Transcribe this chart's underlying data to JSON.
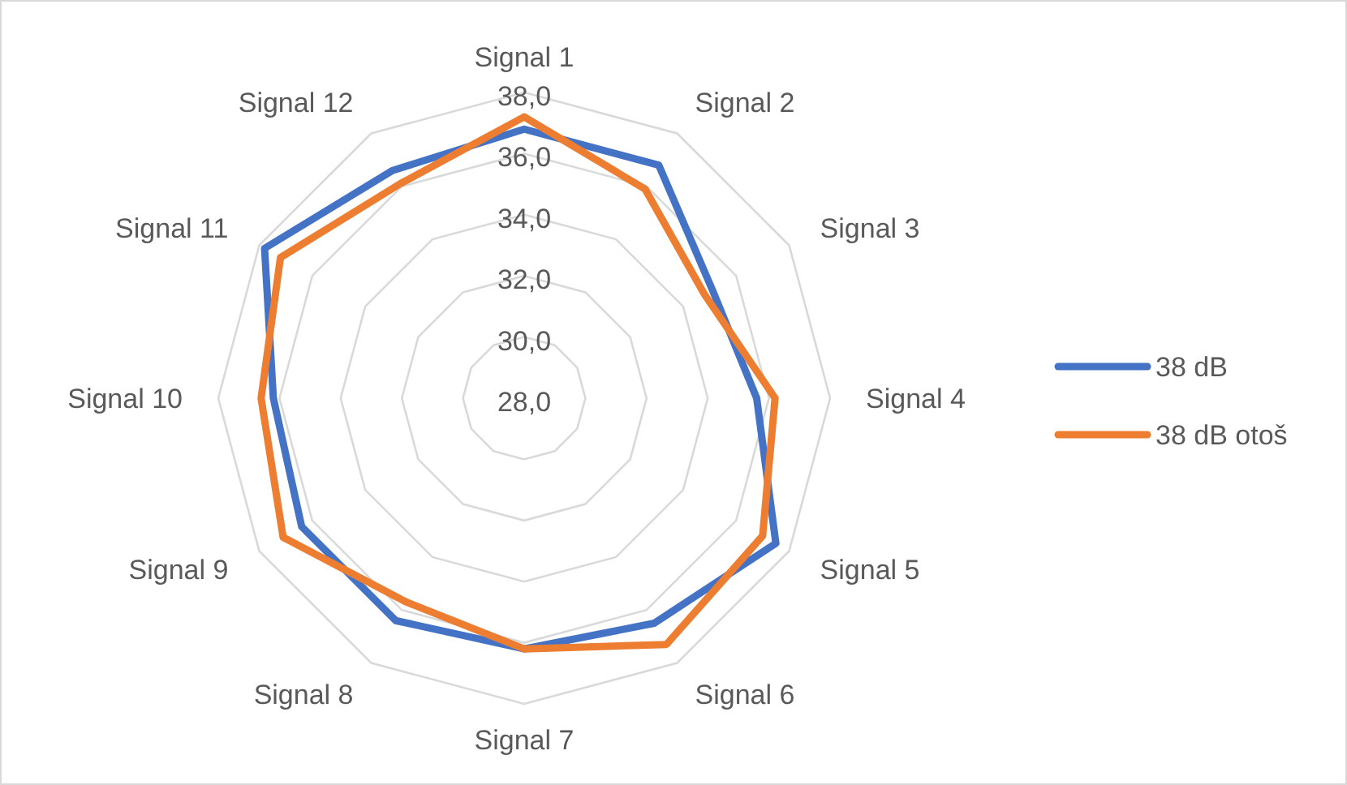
{
  "chart_data": {
    "type": "radar",
    "categories": [
      "Signal 1",
      "Signal 2",
      "Signal 3",
      "Signal 4",
      "Signal 5",
      "Signal 6",
      "Signal 7",
      "Signal 8",
      "Signal 9",
      "Signal 10",
      "Signal 11",
      "Signal 12"
    ],
    "series": [
      {
        "name": "38 dB",
        "color": "#4472c4",
        "values": [
          36.8,
          36.8,
          35.1,
          35.6,
          37.5,
          36.5,
          36.2,
          36.4,
          36.4,
          36.2,
          37.8,
          36.6
        ]
      },
      {
        "name": "38 dB otoš",
        "color": "#ed7d31",
        "values": [
          37.2,
          35.9,
          34.8,
          36.2,
          37.0,
          37.3,
          36.2,
          35.7,
          37.1,
          36.6,
          37.2,
          36.1
        ]
      }
    ],
    "ylim": [
      28,
      38
    ],
    "yticks": [
      {
        "value": 28,
        "label": "28,0"
      },
      {
        "value": 30,
        "label": "30,0"
      },
      {
        "value": 32,
        "label": "32,0"
      },
      {
        "value": 34,
        "label": "34,0"
      },
      {
        "value": 36,
        "label": "36,0"
      },
      {
        "value": 38,
        "label": "38,0"
      }
    ],
    "grid": true,
    "legend": "right",
    "marker": "none",
    "line_style": "solid"
  }
}
